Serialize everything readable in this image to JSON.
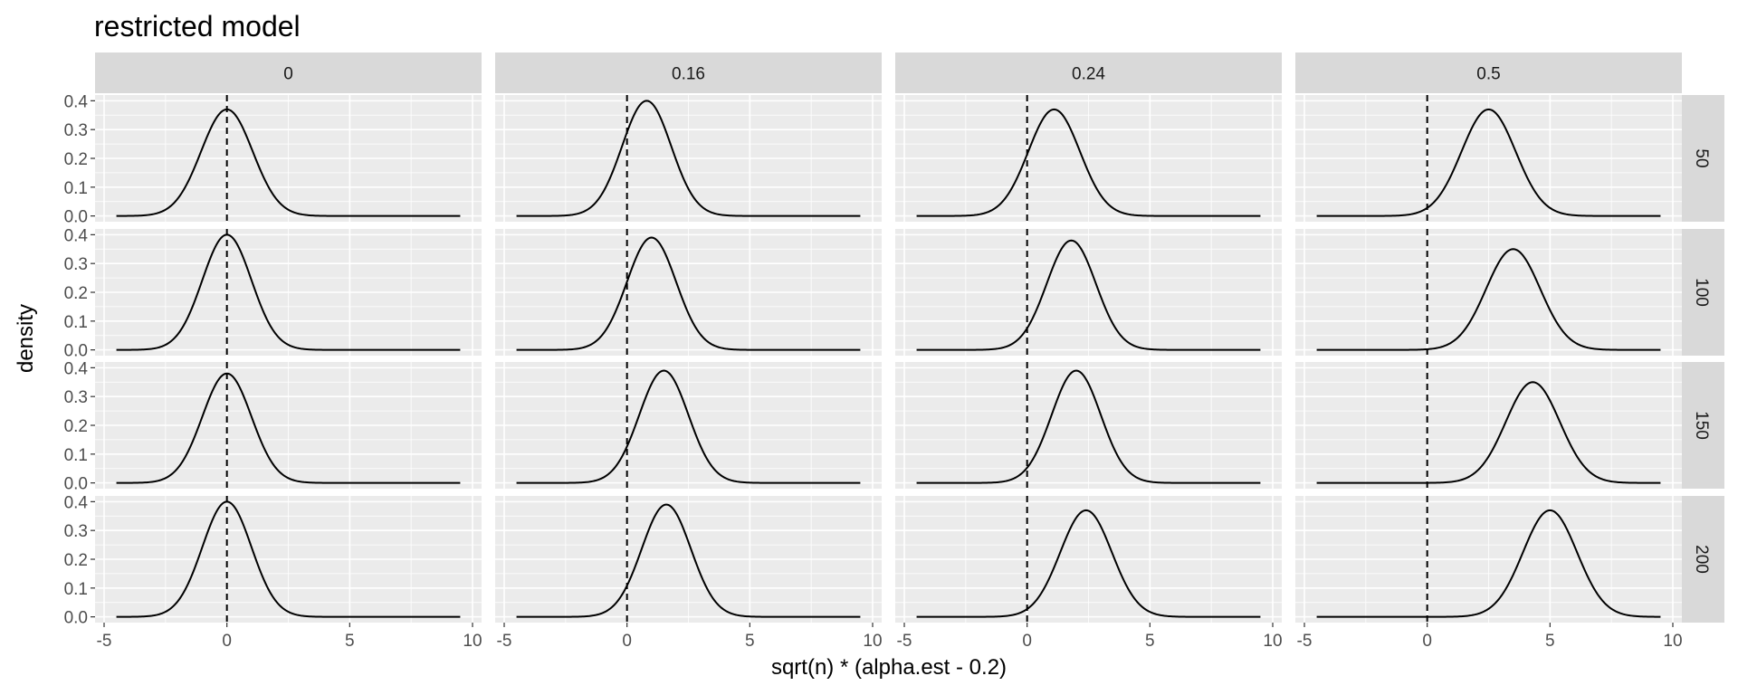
{
  "chart_data": {
    "type": "line",
    "subtype": "density-facet-grid",
    "title": "restricted model",
    "xlabel": "sqrt(n) * (alpha.est - 0.2)",
    "ylabel": "density",
    "xlim": [
      -5,
      10
    ],
    "ylim": [
      0,
      0.4
    ],
    "x_ticks": [
      "-5",
      "0",
      "5",
      "10"
    ],
    "y_ticks": [
      "0.0",
      "0.1",
      "0.2",
      "0.3",
      "0.4"
    ],
    "reference_line": {
      "x": 0,
      "style": "dashed"
    },
    "column_facets": [
      "0",
      "0.16",
      "0.24",
      "0.5"
    ],
    "row_facets": [
      "50",
      "100",
      "150",
      "200"
    ],
    "panel_background": "#ebebeb",
    "strip_background": "#d9d9d9",
    "grid": true,
    "panels": [
      {
        "col": "0",
        "row": "50",
        "peak_x": 0.0,
        "peak_density": 0.37,
        "sd": 1.05
      },
      {
        "col": "0.16",
        "row": "50",
        "peak_x": 0.8,
        "peak_density": 0.4,
        "sd": 1.0
      },
      {
        "col": "0.24",
        "row": "50",
        "peak_x": 1.1,
        "peak_density": 0.37,
        "sd": 1.05
      },
      {
        "col": "0.5",
        "row": "50",
        "peak_x": 2.5,
        "peak_density": 0.37,
        "sd": 1.1
      },
      {
        "col": "0",
        "row": "100",
        "peak_x": 0.0,
        "peak_density": 0.4,
        "sd": 1.0
      },
      {
        "col": "0.16",
        "row": "100",
        "peak_x": 1.0,
        "peak_density": 0.39,
        "sd": 1.0
      },
      {
        "col": "0.24",
        "row": "100",
        "peak_x": 1.8,
        "peak_density": 0.38,
        "sd": 1.0
      },
      {
        "col": "0.5",
        "row": "100",
        "peak_x": 3.5,
        "peak_density": 0.35,
        "sd": 1.1
      },
      {
        "col": "0",
        "row": "150",
        "peak_x": 0.0,
        "peak_density": 0.38,
        "sd": 1.0
      },
      {
        "col": "0.16",
        "row": "150",
        "peak_x": 1.5,
        "peak_density": 0.39,
        "sd": 1.0
      },
      {
        "col": "0.24",
        "row": "150",
        "peak_x": 2.0,
        "peak_density": 0.39,
        "sd": 1.0
      },
      {
        "col": "0.5",
        "row": "150",
        "peak_x": 4.3,
        "peak_density": 0.35,
        "sd": 1.1
      },
      {
        "col": "0",
        "row": "200",
        "peak_x": 0.0,
        "peak_density": 0.4,
        "sd": 1.0
      },
      {
        "col": "0.16",
        "row": "200",
        "peak_x": 1.6,
        "peak_density": 0.39,
        "sd": 1.0
      },
      {
        "col": "0.24",
        "row": "200",
        "peak_x": 2.4,
        "peak_density": 0.37,
        "sd": 1.05
      },
      {
        "col": "0.5",
        "row": "200",
        "peak_x": 5.0,
        "peak_density": 0.37,
        "sd": 1.1
      }
    ]
  }
}
